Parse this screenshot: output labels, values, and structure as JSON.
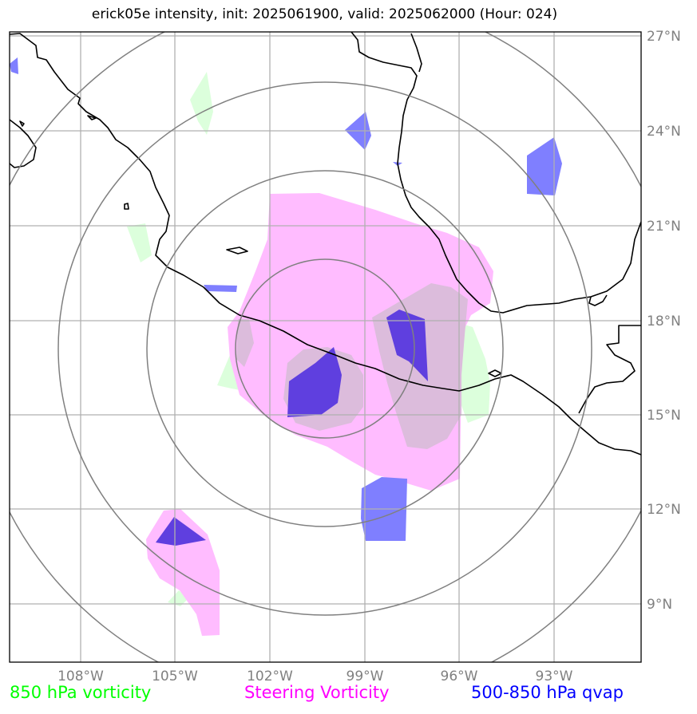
{
  "title": "erick05e intensity, init: 2025061900, valid: 2025062000 (Hour: 024)",
  "axes": {
    "lon_ticks": [
      "108°W",
      "105°W",
      "102°W",
      "99°W",
      "96°W",
      "93°W"
    ],
    "lat_ticks": [
      "27°N",
      "24°N",
      "21°N",
      "18°N",
      "15°N",
      "12°N",
      "9°N"
    ],
    "lon_range": [
      -110.25,
      -90.25
    ],
    "lat_range": [
      7.25,
      27.25
    ]
  },
  "legend": [
    {
      "label": "850 hPa vorticity",
      "color": "#00ff00"
    },
    {
      "label": "Steering Vorticity",
      "color": "#ff00ff"
    },
    {
      "label": "500-850 hPa qvap",
      "color": "#0000ff"
    }
  ],
  "colors": {
    "vorticity_fill": "#dcffdc",
    "steering_fill": "#ffbcff",
    "qvap_fill": "#7f7fff",
    "qvap_dark": "#5f3fdf",
    "overlap_fill": "#dcbcdc",
    "range_rings": "#808080",
    "gridlines": "#b0b0b0",
    "coastline": "#000000"
  }
}
